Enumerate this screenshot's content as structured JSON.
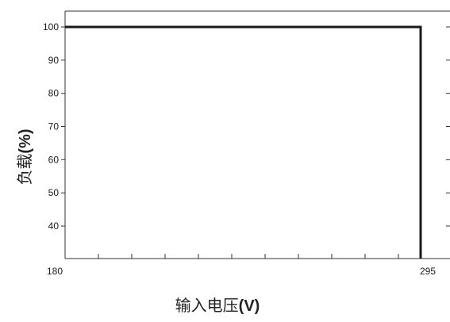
{
  "chart_data": {
    "type": "line",
    "title": "",
    "xlabel": "输入电压",
    "xlabel_unit": "(V)",
    "ylabel": "负载",
    "ylabel_unit": "(%)",
    "xlim": [
      180,
      295
    ],
    "ylim": [
      30,
      105
    ],
    "x_tick_labels": [
      "180",
      "295"
    ],
    "x_minor_ticks": [
      190.5,
      201,
      211.5,
      222,
      232.5,
      243,
      253.5,
      264,
      274.5,
      285
    ],
    "y_ticks": [
      40,
      50,
      60,
      70,
      80,
      90,
      100
    ],
    "grid": false,
    "legend": "none",
    "series": [
      {
        "x": [
          180,
          292,
          292
        ],
        "y": [
          100,
          100,
          30
        ]
      }
    ],
    "line_color": "#1a1a1a"
  }
}
